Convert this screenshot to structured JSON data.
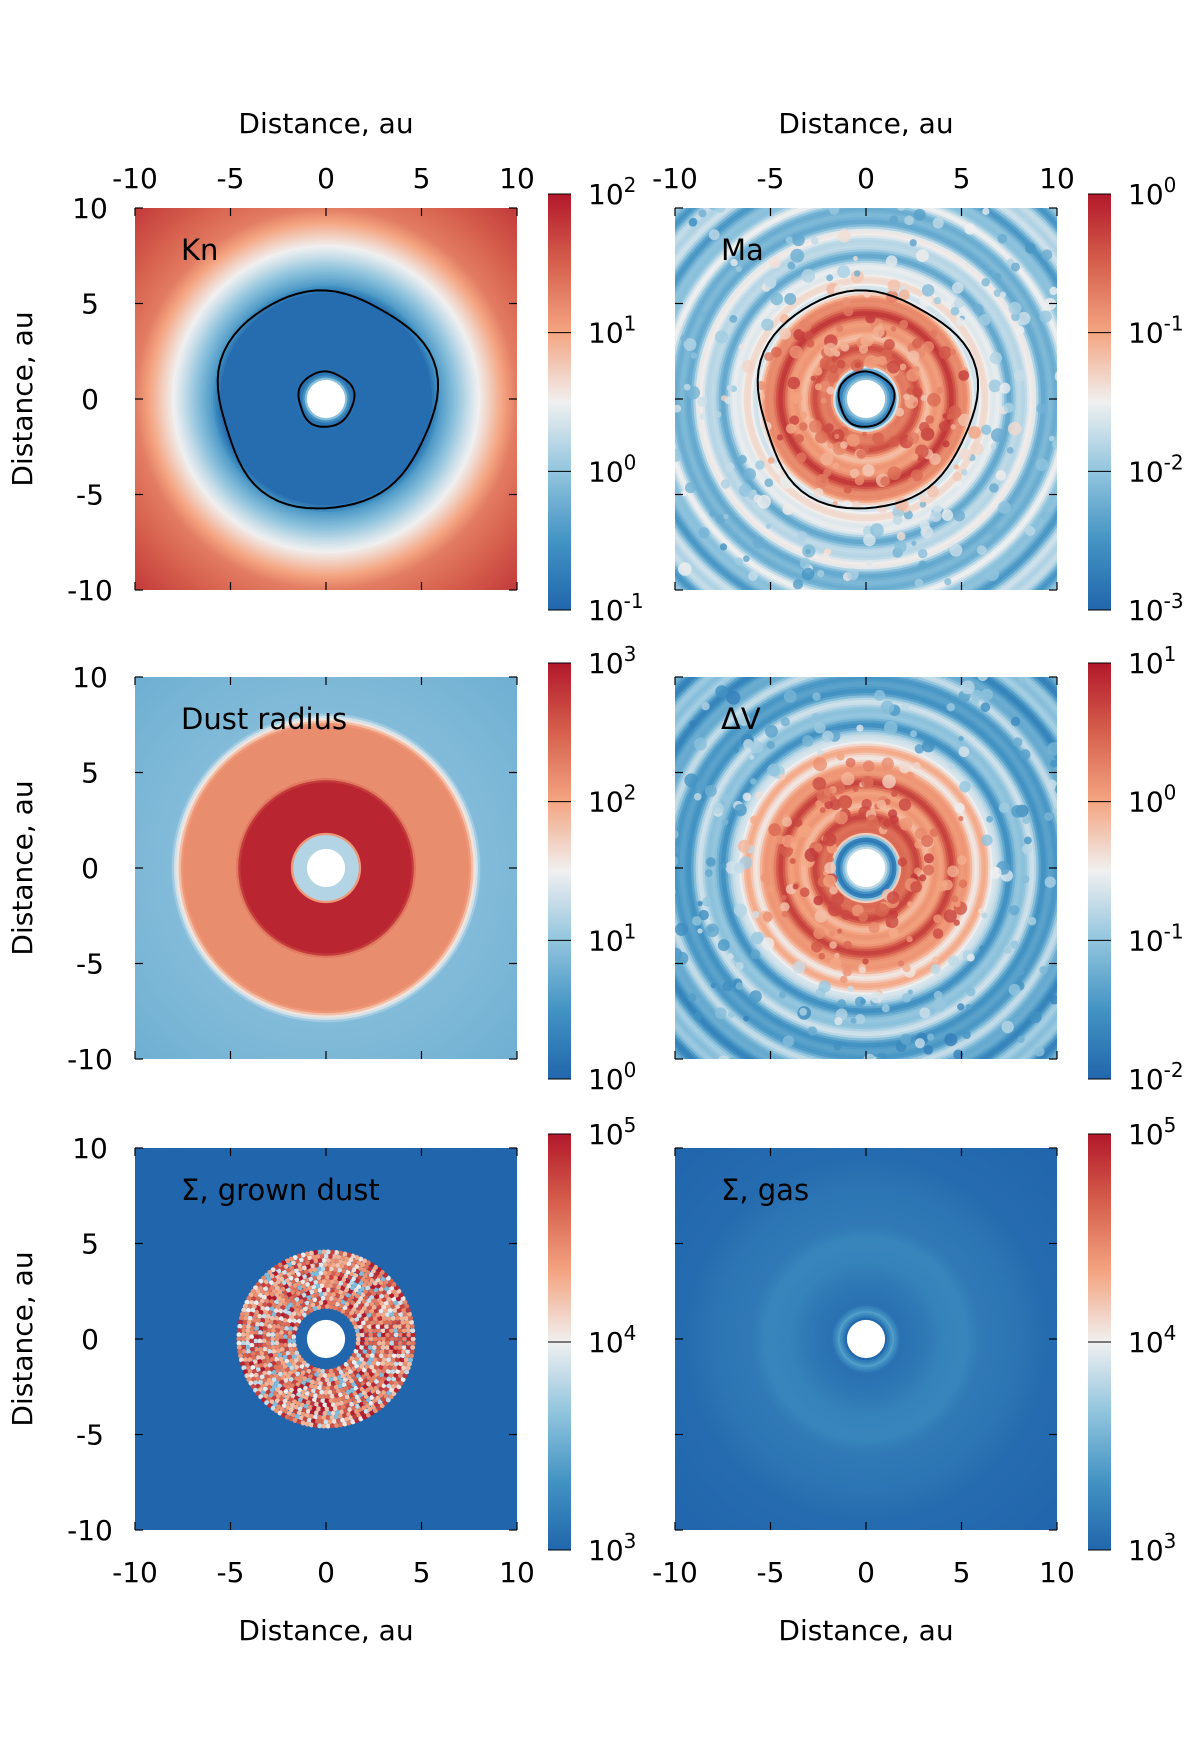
{
  "figure": {
    "axis_label": "Distance, au",
    "colormap": "RdBu_r",
    "colors": {
      "low": "#2166ac",
      "low_mid": "#4393c3",
      "mid_low": "#92c5de",
      "center": "#f0f0f0",
      "mid_high": "#f4a582",
      "high_mid": "#d6604d",
      "high": "#b2182b",
      "contour": "#000000"
    }
  },
  "chart_data": [
    {
      "id": "kn",
      "type": "heatmap",
      "label": "Kn",
      "xlabel": "Distance, au",
      "ylabel": "Distance, au",
      "xlim": [
        -10,
        10
      ],
      "ylim": [
        -10,
        10
      ],
      "x_ticks": [
        "-10",
        "-5",
        "0",
        "5",
        "10"
      ],
      "y_ticks": [
        "10",
        "5",
        "0",
        "-5",
        "-10"
      ],
      "x_tick_values": [
        -10,
        -5,
        0,
        5,
        10
      ],
      "y_tick_values": [
        10,
        5,
        0,
        -5,
        -10
      ],
      "colorbar": {
        "scale": "log",
        "range": [
          0.1,
          100
        ],
        "ticks": [
          {
            "base": "10",
            "exp": "2"
          },
          {
            "base": "10",
            "exp": "1"
          },
          {
            "base": "10",
            "exp": "0"
          },
          {
            "base": "10",
            "exp": "-1"
          }
        ]
      },
      "radial_profile": [
        [
          0,
          1.5
        ],
        [
          1.0,
          1.5
        ],
        [
          1.25,
          0.15
        ],
        [
          1.6,
          0.12
        ],
        [
          5.5,
          0.12
        ],
        [
          6.0,
          0.4
        ],
        [
          7.5,
          2.0
        ],
        [
          10,
          20
        ],
        [
          14.2,
          60
        ]
      ],
      "hole_radius_au": 1.0,
      "contours_au": [
        5.7,
        1.45
      ],
      "grown_dust": false,
      "texture": "smooth"
    },
    {
      "id": "ma",
      "type": "heatmap",
      "label": "Ma",
      "xlabel": "Distance, au",
      "ylabel": "",
      "xlim": [
        -10,
        10
      ],
      "ylim": [
        -10,
        10
      ],
      "x_ticks": [
        "-10",
        "-5",
        "0",
        "5",
        "10"
      ],
      "y_ticks": [],
      "x_tick_values": [
        -10,
        -5,
        0,
        5,
        10
      ],
      "y_tick_values": [
        10,
        5,
        0,
        -5,
        -10
      ],
      "colorbar": {
        "scale": "log",
        "range": [
          0.001,
          1
        ],
        "ticks": [
          {
            "base": "10",
            "exp": "0"
          },
          {
            "base": "10",
            "exp": "-1"
          },
          {
            "base": "10",
            "exp": "-2"
          },
          {
            "base": "10",
            "exp": "-3"
          }
        ]
      },
      "radial_profile": [
        [
          0,
          0.01
        ],
        [
          1.0,
          0.01
        ],
        [
          1.4,
          0.004
        ],
        [
          1.8,
          0.15
        ],
        [
          5.2,
          0.2
        ],
        [
          6.2,
          0.02
        ],
        [
          10,
          0.01
        ],
        [
          14.2,
          0.01
        ]
      ],
      "hole_radius_au": 1.0,
      "contours_au": [
        5.7,
        1.45
      ],
      "grown_dust": false,
      "texture": "rings"
    },
    {
      "id": "dust-radius",
      "type": "heatmap",
      "label": "Dust radius",
      "xlabel": "Distance, au",
      "ylabel": "Distance, au",
      "xlim": [
        -10,
        10
      ],
      "ylim": [
        -10,
        10
      ],
      "x_ticks": [
        "-10",
        "-5",
        "0",
        "5",
        "10"
      ],
      "y_ticks": [
        "10",
        "5",
        "0",
        "-5",
        "-10"
      ],
      "x_tick_values": [
        -10,
        -5,
        0,
        5,
        10
      ],
      "y_tick_values": [
        10,
        5,
        0,
        -5,
        -10
      ],
      "colorbar": {
        "scale": "log",
        "range": [
          1,
          1000
        ],
        "ticks": [
          {
            "base": "10",
            "exp": "3"
          },
          {
            "base": "10",
            "exp": "2"
          },
          {
            "base": "10",
            "exp": "1"
          },
          {
            "base": "10",
            "exp": "0"
          }
        ]
      },
      "radial_profile": [
        [
          0,
          15
        ],
        [
          1.7,
          15
        ],
        [
          1.85,
          800
        ],
        [
          4.5,
          800
        ],
        [
          4.7,
          150
        ],
        [
          7.5,
          150
        ],
        [
          8.1,
          8
        ],
        [
          14.2,
          6
        ]
      ],
      "hole_radius_au": 1.0,
      "contours_au": [],
      "grown_dust": false,
      "texture": "smooth"
    },
    {
      "id": "delta-v",
      "type": "heatmap",
      "label": "ΔV",
      "xlabel": "Distance, au",
      "ylabel": "",
      "xlim": [
        -10,
        10
      ],
      "ylim": [
        -10,
        10
      ],
      "x_ticks": [
        "-10",
        "-5",
        "0",
        "5",
        "10"
      ],
      "y_ticks": [],
      "x_tick_values": [
        -10,
        -5,
        0,
        5,
        10
      ],
      "y_tick_values": [
        10,
        5,
        0,
        -5,
        -10
      ],
      "colorbar": {
        "scale": "log",
        "range": [
          0.01,
          10
        ],
        "ticks": [
          {
            "base": "10",
            "exp": "1"
          },
          {
            "base": "10",
            "exp": "0"
          },
          {
            "base": "10",
            "exp": "-1"
          },
          {
            "base": "10",
            "exp": "-2"
          }
        ]
      },
      "radial_profile": [
        [
          0,
          0.2
        ],
        [
          1.0,
          0.2
        ],
        [
          1.5,
          0.04
        ],
        [
          1.9,
          2.0
        ],
        [
          5.5,
          1.5
        ],
        [
          7.0,
          0.1
        ],
        [
          10,
          0.06
        ],
        [
          14.2,
          0.06
        ]
      ],
      "hole_radius_au": 1.0,
      "contours_au": [],
      "grown_dust": false,
      "texture": "rings"
    },
    {
      "id": "sigma-grown-dust",
      "type": "heatmap",
      "label": "Σ, grown dust",
      "xlabel": "Distance, au",
      "ylabel": "Distance, au",
      "xlim": [
        -10,
        10
      ],
      "ylim": [
        -10,
        10
      ],
      "x_ticks": [
        "-10",
        "-5",
        "0",
        "5",
        "10"
      ],
      "y_ticks": [
        "10",
        "5",
        "0",
        "-5",
        "-10"
      ],
      "x_tick_values": [
        -10,
        -5,
        0,
        5,
        10
      ],
      "y_tick_values": [
        10,
        5,
        0,
        -5,
        -10
      ],
      "colorbar": {
        "scale": "log",
        "range": [
          1000,
          100000
        ],
        "ticks": [
          {
            "base": "10",
            "exp": "5"
          },
          {
            "base": "10",
            "exp": "4"
          },
          {
            "base": "10",
            "exp": "3"
          }
        ]
      },
      "radial_profile": [
        [
          0,
          1000
        ],
        [
          14.2,
          1000
        ]
      ],
      "hole_radius_au": 1.0,
      "contours_au": [],
      "grown_dust": true,
      "grown_dust_range_au": [
        1.7,
        4.7
      ],
      "texture": "checker"
    },
    {
      "id": "sigma-gas",
      "type": "heatmap",
      "label": "Σ, gas",
      "xlabel": "Distance, au",
      "ylabel": "",
      "xlim": [
        -10,
        10
      ],
      "ylim": [
        -10,
        10
      ],
      "x_ticks": [
        "-10",
        "-5",
        "0",
        "5",
        "10"
      ],
      "y_ticks": [],
      "x_tick_values": [
        -10,
        -5,
        0,
        5,
        10
      ],
      "y_tick_values": [
        10,
        5,
        0,
        -5,
        -10
      ],
      "colorbar": {
        "scale": "log",
        "range": [
          1000,
          100000
        ],
        "ticks": [
          {
            "base": "10",
            "exp": "5"
          },
          {
            "base": "10",
            "exp": "4"
          },
          {
            "base": "10",
            "exp": "3"
          }
        ]
      },
      "radial_profile": [
        [
          0,
          1000
        ],
        [
          1.05,
          1000
        ],
        [
          1.4,
          2600
        ],
        [
          1.8,
          1200
        ],
        [
          3.2,
          1400
        ],
        [
          4.0,
          1600
        ],
        [
          5.2,
          1700
        ],
        [
          6.0,
          1400
        ],
        [
          7.8,
          1300
        ],
        [
          9.5,
          1100
        ],
        [
          14.2,
          1000
        ]
      ],
      "hole_radius_au": 1.0,
      "contours_au": [],
      "grown_dust": false,
      "texture": "smooth"
    }
  ]
}
